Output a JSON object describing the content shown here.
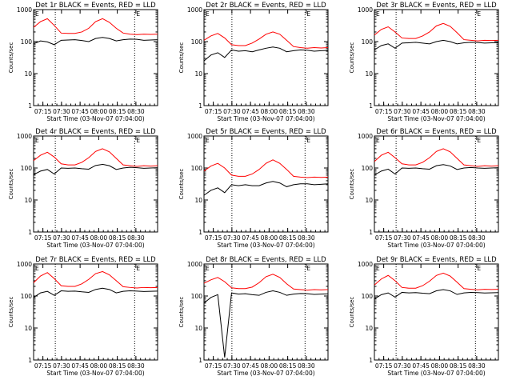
{
  "chart_data": [
    {
      "type": "line",
      "title": "Det 1r BLACK = Events, RED = LLD",
      "xlabel": "Start Time (03-Nov-07 07:04:00)",
      "ylabel": "Counts/sec",
      "ylim": [
        1,
        1000
      ],
      "yscale": "log",
      "xlim": [
        0,
        100
      ],
      "xticks": [
        "07:15",
        "07:30",
        "07:45",
        "08:00",
        "08:15",
        "08:30"
      ],
      "yticks": [
        "1",
        "10",
        "100",
        "1000"
      ],
      "marker_label": "E",
      "dotted_lines_x": [
        17.5,
        81.5
      ],
      "series": [
        {
          "name": "BLACK",
          "color": "#000000",
          "values": [
            85,
            105,
            98,
            80,
            110,
            112,
            115,
            108,
            100,
            125,
            135,
            125,
            105,
            115,
            120,
            118,
            110,
            112,
            115
          ]
        },
        {
          "name": "RED",
          "color": "#ff0000",
          "values": [
            280,
            420,
            520,
            320,
            185,
            180,
            180,
            200,
            260,
            420,
            520,
            400,
            260,
            185,
            170,
            165,
            170,
            168,
            170
          ]
        }
      ]
    },
    {
      "type": "line",
      "title": "Det 2r BLACK = Events, RED = LLD",
      "xlabel": "Start Time (03-Nov-07 07:04:00)",
      "ylabel": "Counts/sec",
      "ylim": [
        1,
        1000
      ],
      "yscale": "log",
      "xlim": [
        0,
        100
      ],
      "xticks": [
        "07:15",
        "07:30",
        "07:45",
        "08:00",
        "08:15",
        "08:30"
      ],
      "yticks": [
        "1",
        "10",
        "100",
        "1000"
      ],
      "marker_label": "E",
      "dotted_lines_x": [
        22.5,
        81.5
      ],
      "series": [
        {
          "name": "BLACK",
          "color": "#000000",
          "values": [
            25,
            38,
            45,
            32,
            55,
            50,
            52,
            48,
            55,
            62,
            68,
            62,
            48,
            52,
            55,
            54,
            50,
            52,
            53
          ]
        },
        {
          "name": "RED",
          "color": "#ff0000",
          "values": [
            110,
            150,
            180,
            130,
            80,
            75,
            75,
            90,
            120,
            170,
            200,
            170,
            110,
            70,
            65,
            62,
            65,
            63,
            65
          ]
        }
      ]
    },
    {
      "type": "line",
      "title": "Det 3r BLACK = Events, RED = LLD",
      "xlabel": "Start Time (03-Nov-07 07:04:00)",
      "ylabel": "Counts/sec",
      "ylim": [
        1,
        1000
      ],
      "yscale": "log",
      "xlim": [
        0,
        100
      ],
      "xticks": [
        "07:15",
        "07:30",
        "07:45",
        "08:00",
        "08:15",
        "08:30"
      ],
      "yticks": [
        "1",
        "10",
        "100",
        "1000"
      ],
      "marker_label": "E",
      "dotted_lines_x": [
        17.5,
        81.5
      ],
      "series": [
        {
          "name": "BLACK",
          "color": "#000000",
          "values": [
            55,
            75,
            85,
            62,
            90,
            92,
            95,
            90,
            85,
            100,
            110,
            100,
            85,
            92,
            95,
            94,
            90,
            92,
            93
          ]
        },
        {
          "name": "RED",
          "color": "#ff0000",
          "values": [
            160,
            240,
            290,
            200,
            130,
            125,
            125,
            150,
            200,
            310,
            370,
            300,
            190,
            115,
            110,
            105,
            110,
            108,
            110
          ]
        }
      ]
    },
    {
      "type": "line",
      "title": "Det 4r BLACK = Events, RED = LLD",
      "xlabel": "Start Time (03-Nov-07 07:04:00)",
      "ylabel": "Counts/sec",
      "ylim": [
        1,
        1000
      ],
      "yscale": "log",
      "xlim": [
        0,
        100
      ],
      "xticks": [
        "07:15",
        "07:30",
        "07:45",
        "08:00",
        "08:15",
        "08:30"
      ],
      "yticks": [
        "1",
        "10",
        "100",
        "1000"
      ],
      "marker_label": "E",
      "dotted_lines_x": [
        17.5,
        81.5
      ],
      "series": [
        {
          "name": "BLACK",
          "color": "#000000",
          "values": [
            62,
            80,
            90,
            65,
            100,
            98,
            100,
            95,
            92,
            120,
            130,
            118,
            90,
            100,
            105,
            102,
            98,
            100,
            102
          ]
        },
        {
          "name": "RED",
          "color": "#ff0000",
          "values": [
            170,
            250,
            310,
            220,
            135,
            125,
            125,
            150,
            210,
            330,
            400,
            320,
            200,
            125,
            118,
            112,
            118,
            115,
            118
          ]
        }
      ]
    },
    {
      "type": "line",
      "title": "Det 5r BLACK = Events, RED = LLD",
      "xlabel": "Start Time (03-Nov-07 07:04:00)",
      "ylabel": "Counts/sec",
      "ylim": [
        1,
        1000
      ],
      "yscale": "log",
      "xlim": [
        0,
        100
      ],
      "xticks": [
        "07:15",
        "07:30",
        "07:45",
        "08:00",
        "08:15",
        "08:30"
      ],
      "yticks": [
        "1",
        "10",
        "100",
        "1000"
      ],
      "marker_label": "E",
      "dotted_lines_x": [
        22.5,
        81.5
      ],
      "series": [
        {
          "name": "BLACK",
          "color": "#000000",
          "values": [
            14,
            20,
            24,
            17,
            30,
            28,
            30,
            28,
            28,
            34,
            38,
            34,
            26,
            30,
            32,
            32,
            30,
            31,
            32
          ]
        },
        {
          "name": "RED",
          "color": "#ff0000",
          "values": [
            80,
            115,
            140,
            100,
            60,
            55,
            55,
            65,
            90,
            140,
            180,
            140,
            90,
            55,
            52,
            50,
            52,
            51,
            52
          ]
        }
      ]
    },
    {
      "type": "line",
      "title": "Det 6r BLACK = Events, RED = LLD",
      "xlabel": "Start Time (03-Nov-07 07:04:00)",
      "ylabel": "Counts/sec",
      "ylim": [
        1,
        1000
      ],
      "yscale": "log",
      "xlim": [
        0,
        100
      ],
      "xticks": [
        "07:15",
        "07:30",
        "07:45",
        "08:00",
        "08:15",
        "08:30"
      ],
      "yticks": [
        "1",
        "10",
        "100",
        "1000"
      ],
      "marker_label": "E",
      "dotted_lines_x": [
        17.5,
        81.5
      ],
      "series": [
        {
          "name": "BLACK",
          "color": "#000000",
          "values": [
            60,
            80,
            92,
            65,
            100,
            98,
            100,
            95,
            92,
            118,
            128,
            116,
            90,
            100,
            104,
            100,
            98,
            100,
            102
          ]
        },
        {
          "name": "RED",
          "color": "#ff0000",
          "values": [
            160,
            250,
            310,
            210,
            135,
            125,
            125,
            150,
            210,
            330,
            400,
            320,
            200,
            125,
            118,
            112,
            118,
            115,
            118
          ]
        }
      ]
    },
    {
      "type": "line",
      "title": "Det 7r BLACK = Events, RED = LLD",
      "xlabel": "Start Time (03-Nov-07 07:04:00)",
      "ylabel": "Counts/sec",
      "ylim": [
        1,
        1000
      ],
      "yscale": "log",
      "xlim": [
        0,
        100
      ],
      "xticks": [
        "07:15",
        "07:30",
        "07:45",
        "08:00",
        "08:15",
        "08:30"
      ],
      "yticks": [
        "1",
        "10",
        "100",
        "1000"
      ],
      "marker_label": "E",
      "dotted_lines_x": [
        17.5,
        81.5
      ],
      "series": [
        {
          "name": "BLACK",
          "color": "#000000",
          "values": [
            90,
            125,
            140,
            105,
            145,
            140,
            142,
            135,
            130,
            160,
            175,
            160,
            125,
            140,
            145,
            142,
            138,
            140,
            142
          ]
        },
        {
          "name": "RED",
          "color": "#ff0000",
          "values": [
            260,
            420,
            540,
            350,
            210,
            200,
            200,
            240,
            330,
            500,
            580,
            460,
            300,
            195,
            185,
            178,
            185,
            182,
            185
          ]
        }
      ]
    },
    {
      "type": "line",
      "title": "Det 8r BLACK = Events, RED = LLD",
      "xlabel": "Start Time (03-Nov-07 07:04:00)",
      "ylabel": "Counts/sec",
      "ylim": [
        1,
        1000
      ],
      "yscale": "log",
      "xlim": [
        0,
        100
      ],
      "xticks": [
        "07:15",
        "07:30",
        "07:45",
        "08:00",
        "08:15",
        "08:30"
      ],
      "yticks": [
        "1",
        "10",
        "100",
        "1000"
      ],
      "marker_label": "E",
      "dotted_lines_x": [
        22.5,
        81.5
      ],
      "series": [
        {
          "name": "BLACK",
          "color": "#000000",
          "values": [
            60,
            90,
            110,
            1.2,
            125,
            115,
            118,
            110,
            105,
            130,
            145,
            130,
            105,
            115,
            120,
            118,
            112,
            115,
            117
          ]
        },
        {
          "name": "RED",
          "color": "#ff0000",
          "values": [
            250,
            320,
            380,
            280,
            180,
            170,
            170,
            190,
            260,
            400,
            480,
            380,
            240,
            165,
            158,
            152,
            158,
            155,
            158
          ]
        }
      ]
    },
    {
      "type": "line",
      "title": "Det 9r BLACK = Events, RED = LLD",
      "xlabel": "Start Time (03-Nov-07 07:04:00)",
      "ylabel": "Counts/sec",
      "ylim": [
        1,
        1000
      ],
      "yscale": "log",
      "xlim": [
        0,
        100
      ],
      "xticks": [
        "07:15",
        "07:30",
        "07:45",
        "08:00",
        "08:15",
        "08:30"
      ],
      "yticks": [
        "1",
        "10",
        "100",
        "1000"
      ],
      "marker_label": "E",
      "dotted_lines_x": [
        17.5,
        81.5
      ],
      "series": [
        {
          "name": "BLACK",
          "color": "#000000",
          "values": [
            80,
            110,
            125,
            92,
            130,
            125,
            128,
            122,
            118,
            145,
            158,
            145,
            112,
            125,
            130,
            128,
            124,
            126,
            128
          ]
        },
        {
          "name": "RED",
          "color": "#ff0000",
          "values": [
            220,
            340,
            440,
            300,
            185,
            175,
            175,
            210,
            290,
            440,
            520,
            420,
            270,
            170,
            162,
            156,
            162,
            160,
            162
          ]
        }
      ]
    }
  ]
}
